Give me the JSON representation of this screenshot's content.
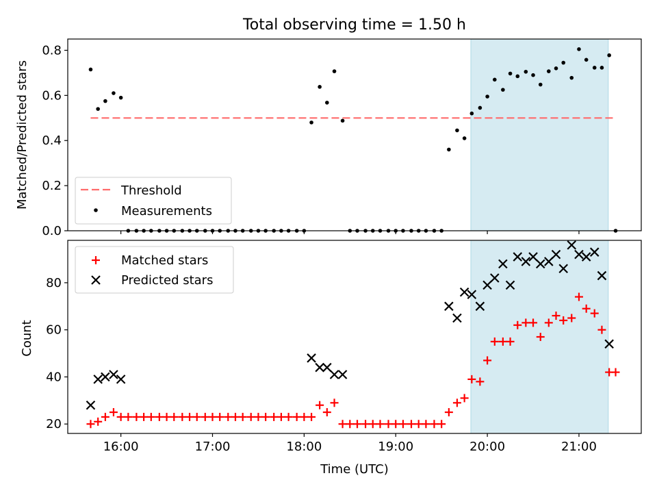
{
  "chart_data": [
    {
      "type": "scatter",
      "title": "Total observing time = 1.50 h",
      "ylabel": "Matched/Predicted stars",
      "xlabel": "",
      "x_unit": "hours UTC",
      "xlim": [
        15.42,
        21.68
      ],
      "ylim": [
        0,
        0.85
      ],
      "yticks": [
        0.0,
        0.2,
        0.4,
        0.6,
        0.8
      ],
      "ytick_labels": [
        "0.0",
        "0.2",
        "0.4",
        "0.6",
        "0.8"
      ],
      "xticks": [
        16,
        17,
        18,
        19,
        20,
        21
      ],
      "highlight_span": [
        19.82,
        21.32
      ],
      "legend_position": "lower left",
      "threshold": {
        "name": "Threshold",
        "y": 0.5,
        "x_range": [
          15.67,
          21.37
        ],
        "color": "#ff6b6b",
        "style": "dashed"
      },
      "series": [
        {
          "name": "Measurements",
          "marker": "dot",
          "color": "#000000",
          "x": [
            15.67,
            15.75,
            15.83,
            15.92,
            16.0,
            16.08,
            16.17,
            16.25,
            16.33,
            16.42,
            16.5,
            16.58,
            16.67,
            16.75,
            16.83,
            16.92,
            17.0,
            17.08,
            17.17,
            17.25,
            17.33,
            17.42,
            17.5,
            17.58,
            17.67,
            17.75,
            17.83,
            17.92,
            18.0,
            18.08,
            18.17,
            18.25,
            18.33,
            18.42,
            18.5,
            18.58,
            18.67,
            18.75,
            18.83,
            18.92,
            19.0,
            19.08,
            19.17,
            19.25,
            19.33,
            19.42,
            19.5,
            19.58,
            19.67,
            19.75,
            19.83,
            19.92,
            20.0,
            20.08,
            20.17,
            20.25,
            20.33,
            20.42,
            20.5,
            20.58,
            20.67,
            20.75,
            20.83,
            20.92,
            21.0,
            21.08,
            21.17,
            21.25,
            21.33,
            21.4
          ],
          "y": [
            0.715,
            0.54,
            0.575,
            0.61,
            0.59,
            0.0,
            0.0,
            0.0,
            0.0,
            0.0,
            0.0,
            0.0,
            0.0,
            0.0,
            0.0,
            0.0,
            0.0,
            0.0,
            0.0,
            0.0,
            0.0,
            0.0,
            0.0,
            0.0,
            0.0,
            0.0,
            0.0,
            0.0,
            0.0,
            0.48,
            0.638,
            0.568,
            0.707,
            0.488,
            0.0,
            0.0,
            0.0,
            0.0,
            0.0,
            0.0,
            0.0,
            0.0,
            0.0,
            0.0,
            0.0,
            0.0,
            0.0,
            0.36,
            0.445,
            0.41,
            0.52,
            0.545,
            0.595,
            0.67,
            0.625,
            0.697,
            0.685,
            0.705,
            0.69,
            0.648,
            0.707,
            0.72,
            0.745,
            0.678,
            0.805,
            0.758,
            0.723,
            0.723,
            0.778,
            0.0
          ]
        }
      ]
    },
    {
      "type": "scatter",
      "title": "",
      "ylabel": "Count",
      "xlabel": "Time (UTC)",
      "x_unit": "hours UTC",
      "xlim": [
        15.42,
        21.68
      ],
      "ylim": [
        16,
        98
      ],
      "yticks": [
        20,
        40,
        60,
        80
      ],
      "ytick_labels": [
        "20",
        "40",
        "60",
        "80"
      ],
      "xticks": [
        16,
        17,
        18,
        19,
        20,
        21
      ],
      "xtick_labels": [
        "16:00",
        "17:00",
        "18:00",
        "19:00",
        "20:00",
        "21:00"
      ],
      "highlight_span": [
        19.82,
        21.32
      ],
      "legend_position": "upper left",
      "series": [
        {
          "name": "Matched stars",
          "marker": "plus",
          "color": "#ff0000",
          "x": [
            15.67,
            15.75,
            15.83,
            15.92,
            16.0,
            16.08,
            16.17,
            16.25,
            16.33,
            16.42,
            16.5,
            16.58,
            16.67,
            16.75,
            16.83,
            16.92,
            17.0,
            17.08,
            17.17,
            17.25,
            17.33,
            17.42,
            17.5,
            17.58,
            17.67,
            17.75,
            17.83,
            17.92,
            18.0,
            18.08,
            18.17,
            18.25,
            18.33,
            18.42,
            18.5,
            18.58,
            18.67,
            18.75,
            18.83,
            18.92,
            19.0,
            19.08,
            19.17,
            19.25,
            19.33,
            19.42,
            19.5,
            19.58,
            19.67,
            19.75,
            19.83,
            19.92,
            20.0,
            20.08,
            20.17,
            20.25,
            20.33,
            20.42,
            20.5,
            20.58,
            20.67,
            20.75,
            20.83,
            20.92,
            21.0,
            21.08,
            21.17,
            21.25,
            21.33,
            21.4
          ],
          "y": [
            20,
            21,
            23,
            25,
            23,
            23,
            23,
            23,
            23,
            23,
            23,
            23,
            23,
            23,
            23,
            23,
            23,
            23,
            23,
            23,
            23,
            23,
            23,
            23,
            23,
            23,
            23,
            23,
            23,
            23,
            28,
            25,
            29,
            20,
            20,
            20,
            20,
            20,
            20,
            20,
            20,
            20,
            20,
            20,
            20,
            20,
            20,
            25,
            29,
            31,
            39,
            38,
            47,
            55,
            55,
            55,
            62,
            63,
            63,
            57,
            63,
            66,
            64,
            65,
            74,
            69,
            67,
            60,
            42,
            42
          ]
        },
        {
          "name": "Predicted stars",
          "marker": "x",
          "color": "#000000",
          "x": [
            15.67,
            15.75,
            15.83,
            15.92,
            16.0,
            18.08,
            18.17,
            18.25,
            18.33,
            18.42,
            19.58,
            19.67,
            19.75,
            19.83,
            19.92,
            20.0,
            20.08,
            20.17,
            20.25,
            20.33,
            20.42,
            20.5,
            20.58,
            20.67,
            20.75,
            20.83,
            20.92,
            21.0,
            21.08,
            21.17,
            21.25,
            21.33
          ],
          "y": [
            28,
            39,
            40,
            41,
            39,
            48,
            44,
            44,
            41,
            41,
            70,
            65,
            76,
            75,
            70,
            79,
            82,
            88,
            79,
            91,
            89,
            91,
            88,
            89,
            92,
            86,
            96,
            92,
            91,
            93,
            83,
            54
          ]
        }
      ]
    }
  ]
}
